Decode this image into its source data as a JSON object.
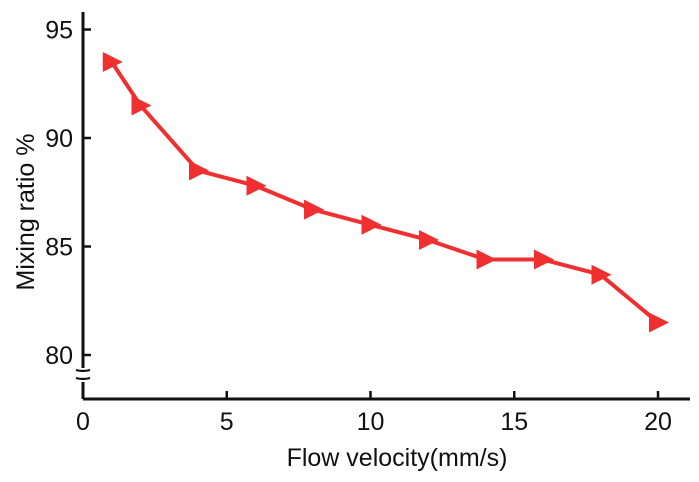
{
  "chart_data": {
    "type": "line",
    "title": "",
    "xlabel": "Flow velocity(mm/s)",
    "ylabel": "Mixing ratio %",
    "xlim": [
      0,
      21
    ],
    "ylim": [
      79,
      96
    ],
    "x_ticks": [
      "0",
      "5",
      "10",
      "15",
      "20"
    ],
    "y_ticks": [
      "80",
      "85",
      "90",
      "95"
    ],
    "axis_break": "y-axis near 79",
    "series": [
      {
        "name": "Mixing ratio",
        "color": "#f03030",
        "marker": "right-triangle",
        "x": [
          1,
          2,
          4,
          6,
          8,
          10,
          12,
          14,
          16,
          18,
          20
        ],
        "values": [
          93.5,
          91.5,
          88.5,
          87.8,
          86.7,
          86.0,
          85.3,
          84.4,
          84.4,
          83.7,
          81.5
        ]
      }
    ]
  }
}
